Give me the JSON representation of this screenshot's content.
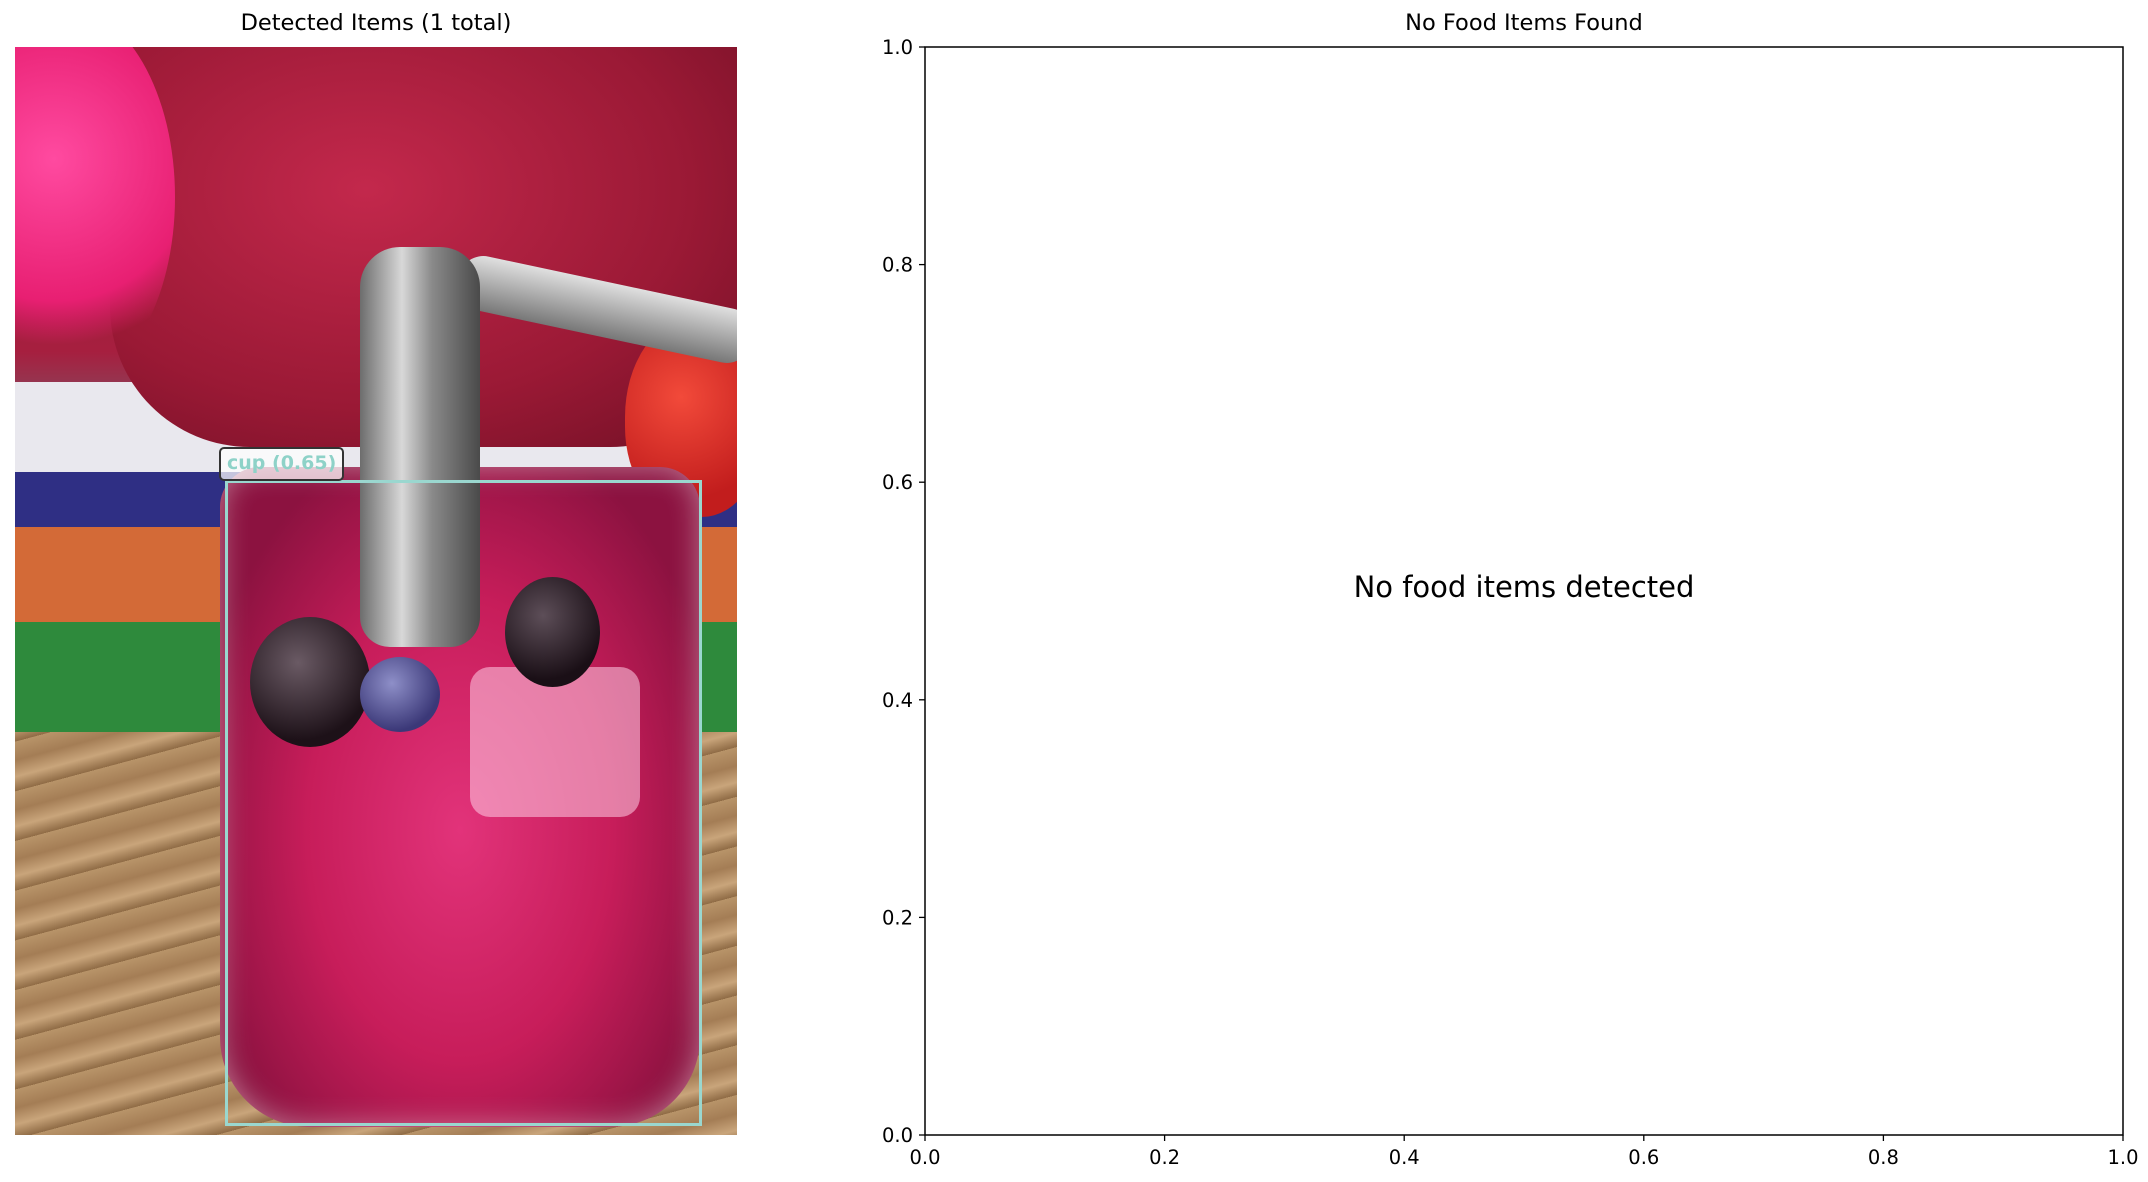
{
  "left_panel": {
    "title": "Detected Items (1 total)",
    "detections": [
      {
        "label": "cup (0.65)",
        "color": "#9ad7cf"
      }
    ]
  },
  "right_panel": {
    "title": "No Food Items Found",
    "message": "No food items detected"
  },
  "chart_data": {
    "type": "scatter",
    "title": "No Food Items Found",
    "xlabel": "",
    "ylabel": "",
    "xlim": [
      0.0,
      1.0
    ],
    "ylim": [
      0.0,
      1.0
    ],
    "x_ticks": [
      "0.0",
      "0.2",
      "0.4",
      "0.6",
      "0.8",
      "1.0"
    ],
    "y_ticks": [
      "0.0",
      "0.2",
      "0.4",
      "0.6",
      "0.8",
      "1.0"
    ],
    "series": [],
    "annotation": "No food items detected",
    "grid": false
  }
}
